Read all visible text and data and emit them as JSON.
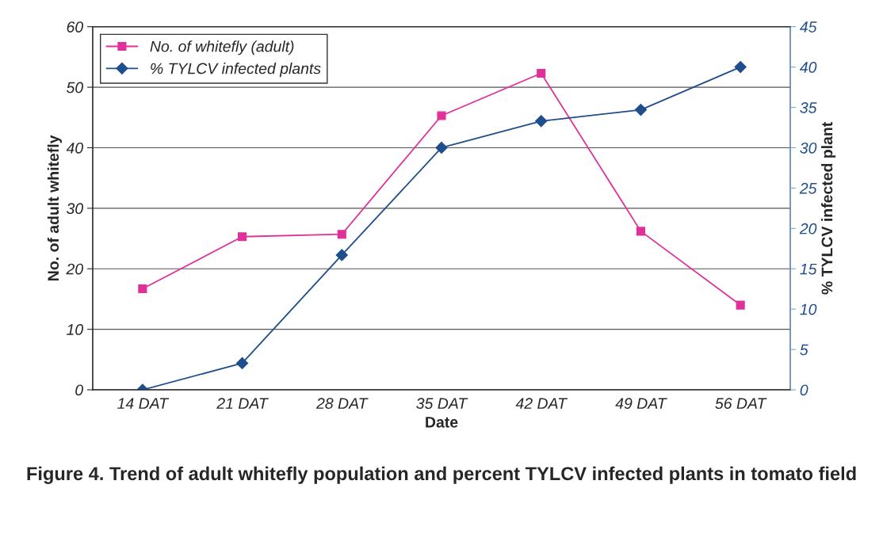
{
  "chart_data": {
    "type": "line",
    "title": "Figure 4. Trend of adult whitefly population and percent TYLCV infected plants in tomato field",
    "xlabel": "Date",
    "ylabel": "No. of adult whitefly",
    "y2label": "% TYLCV infected plant",
    "categories": [
      "14 DAT",
      "21 DAT",
      "28 DAT",
      "35 DAT",
      "42 DAT",
      "49 DAT",
      "56 DAT"
    ],
    "series": [
      {
        "name": "No. of whitefly (adult)",
        "color": "#e0309a",
        "marker": "square",
        "values": [
          16.7,
          25.3,
          25.7,
          45.3,
          52.3,
          26.2,
          14.0
        ]
      },
      {
        "name": "% TYLCV infected plants",
        "color": "#1f4e8c",
        "marker": "diamond",
        "axis": "y2",
        "values": [
          0,
          3.3,
          16.7,
          30.0,
          33.3,
          34.7,
          40.0
        ]
      }
    ],
    "ylim": [
      0,
      60
    ],
    "yticks": [
      0,
      10,
      20,
      30,
      40,
      50,
      60
    ],
    "y2lim": [
      0,
      45
    ],
    "y2ticks": [
      0,
      5,
      10,
      15,
      20,
      25,
      30,
      35,
      40,
      45
    ],
    "grid": "y",
    "legend": "top left",
    "line_style": "solid"
  }
}
